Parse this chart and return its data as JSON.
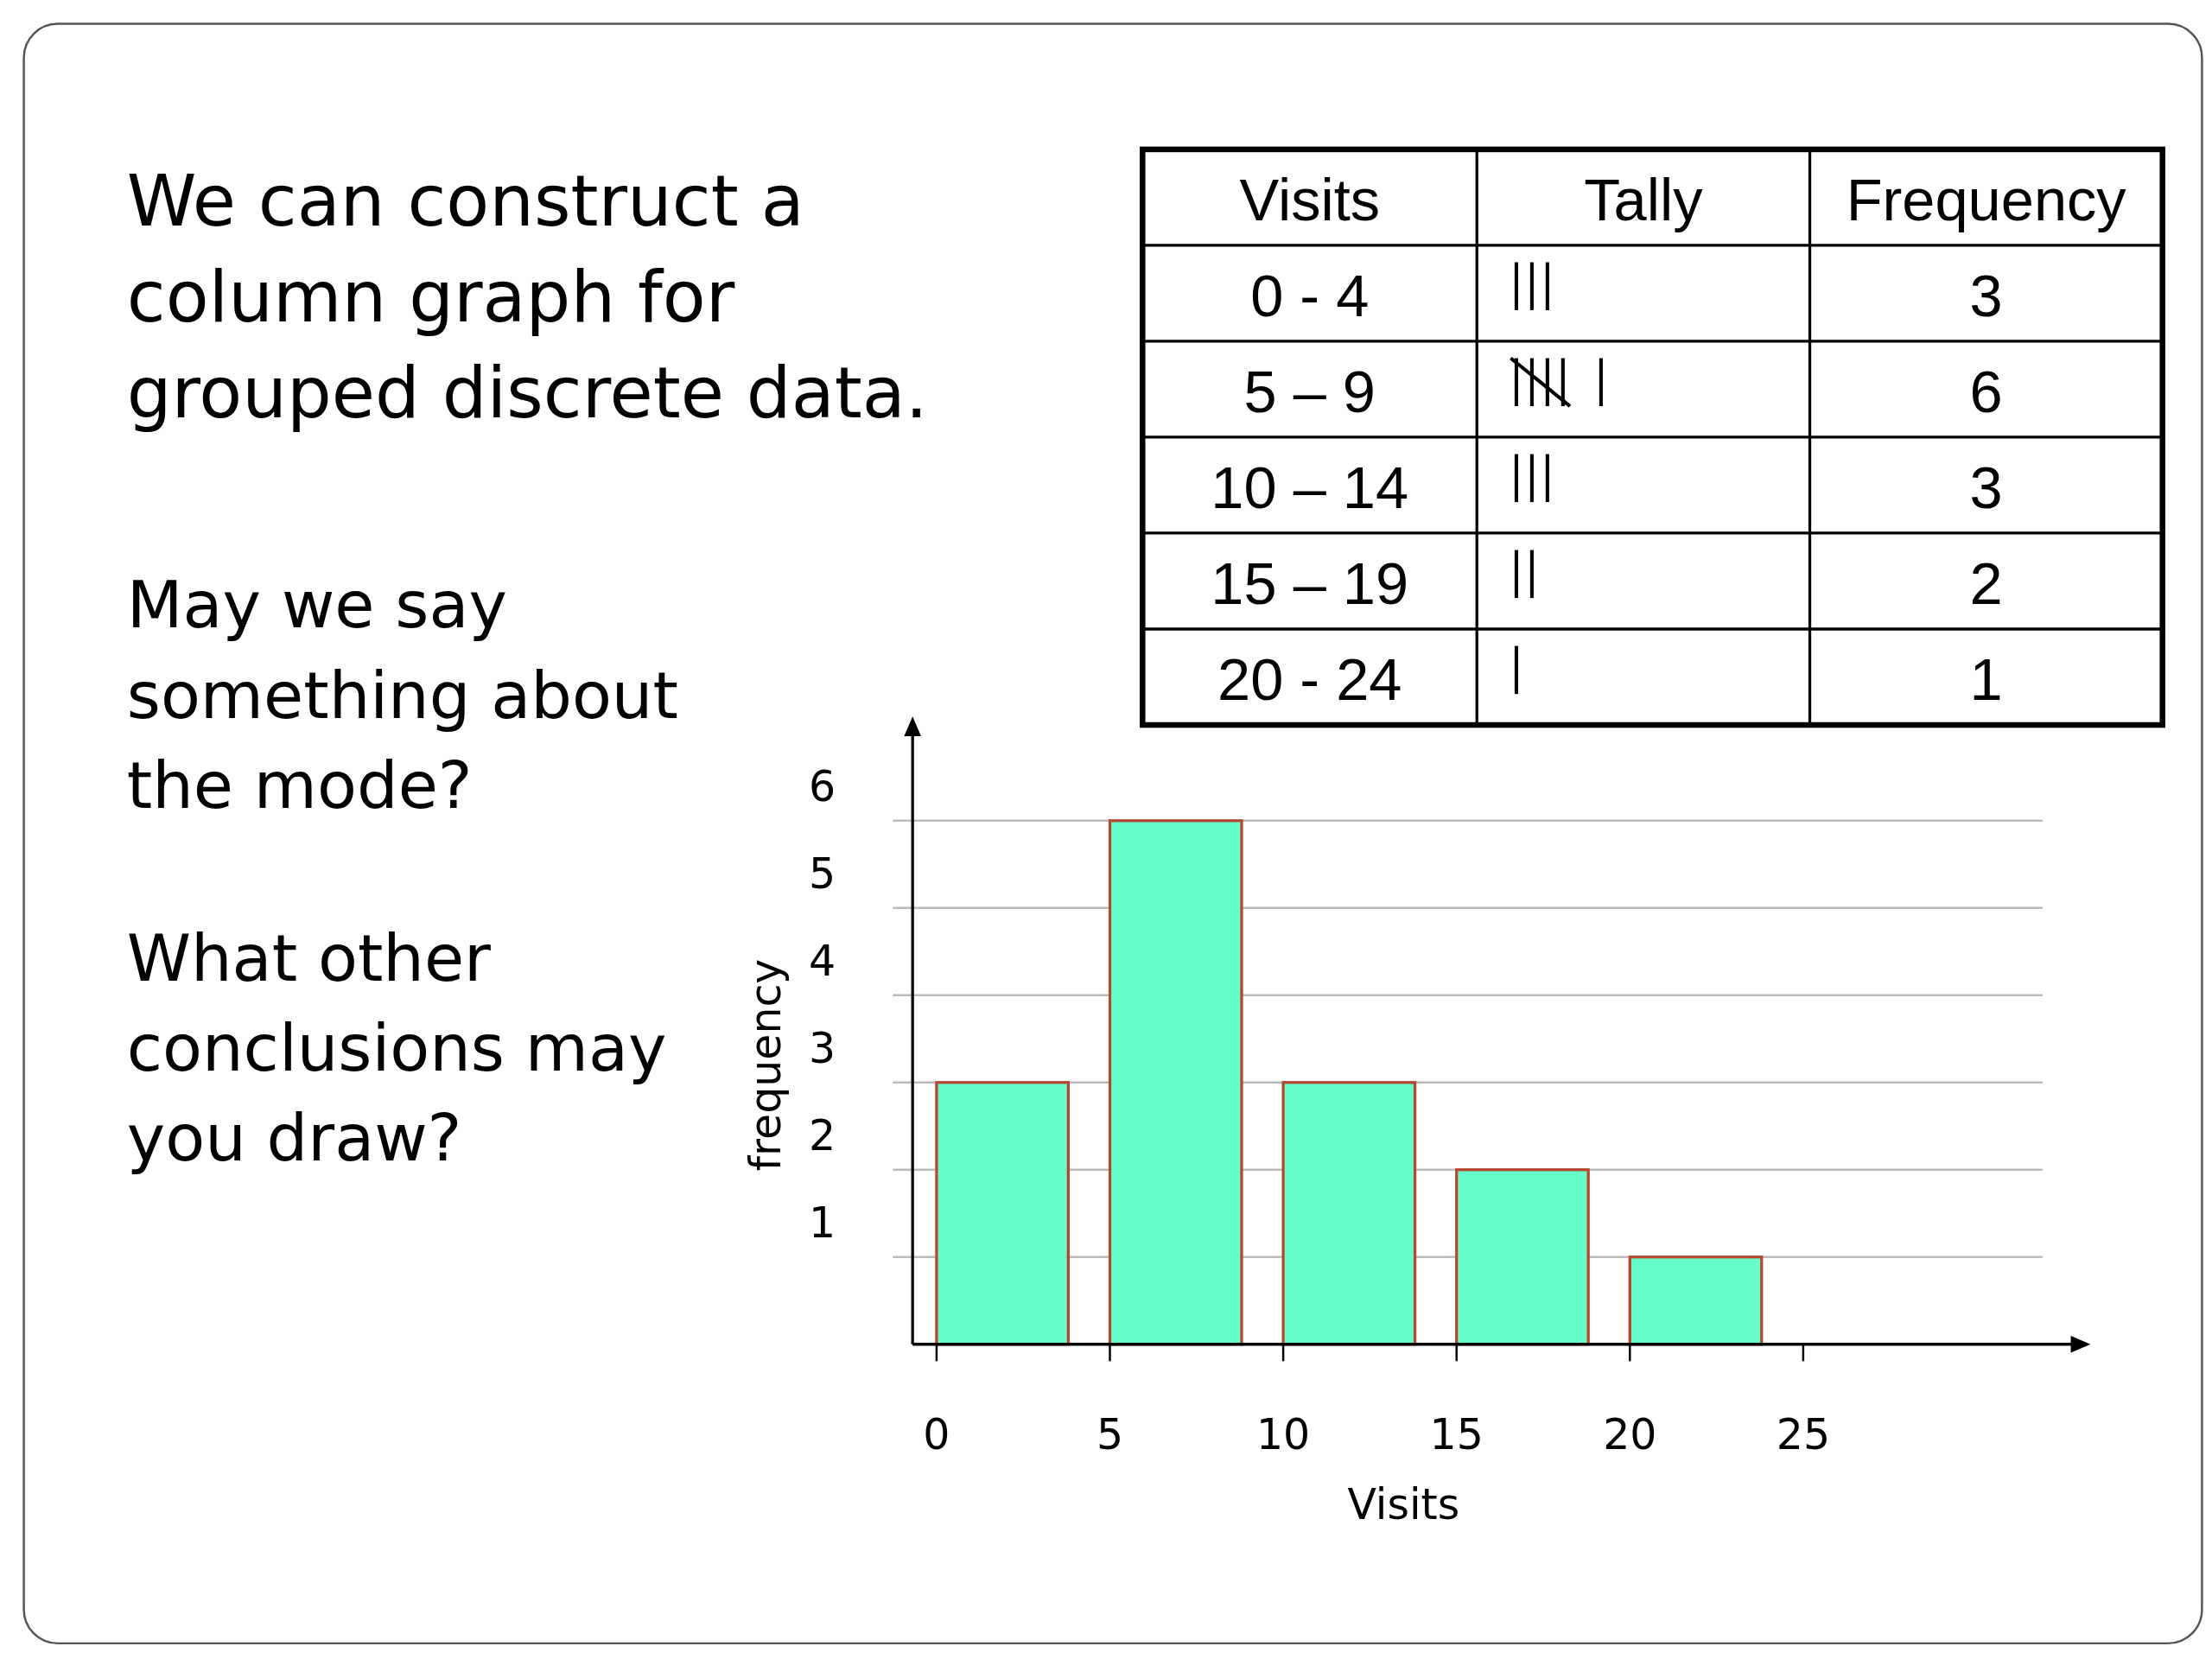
{
  "chart_data": [
    {
      "type": "bar",
      "title": "We can construct a column graph for grouped discrete data.",
      "xlabel": "Visits",
      "ylabel": "frequency",
      "x": [
        1.9,
        6.9,
        11.9,
        16.9,
        21.9
      ],
      "values": [
        3,
        6,
        3,
        2,
        1
      ],
      "color": "#66ffcc",
      "xlim": [
        0,
        32.8
      ],
      "xticks": [
        0,
        5,
        10,
        15,
        20,
        25
      ],
      "ylim": [
        0,
        7
      ],
      "yticks": [
        1,
        2,
        3,
        4,
        5,
        6
      ],
      "grid": "y",
      "annotations": [
        "May we say something about the mode?",
        "What other conclusions may you draw?"
      ]
    },
    {
      "type": "other",
      "categories": [
        "0 - 4",
        "5 – 9",
        "10 – 14",
        "15 – 19",
        "20 - 24"
      ],
      "values": [
        3,
        6,
        3,
        2,
        1
      ],
      "data_labels": true,
      "annotations": [
        "Visits",
        "Tally",
        "Frequency"
      ]
    }
  ]
}
